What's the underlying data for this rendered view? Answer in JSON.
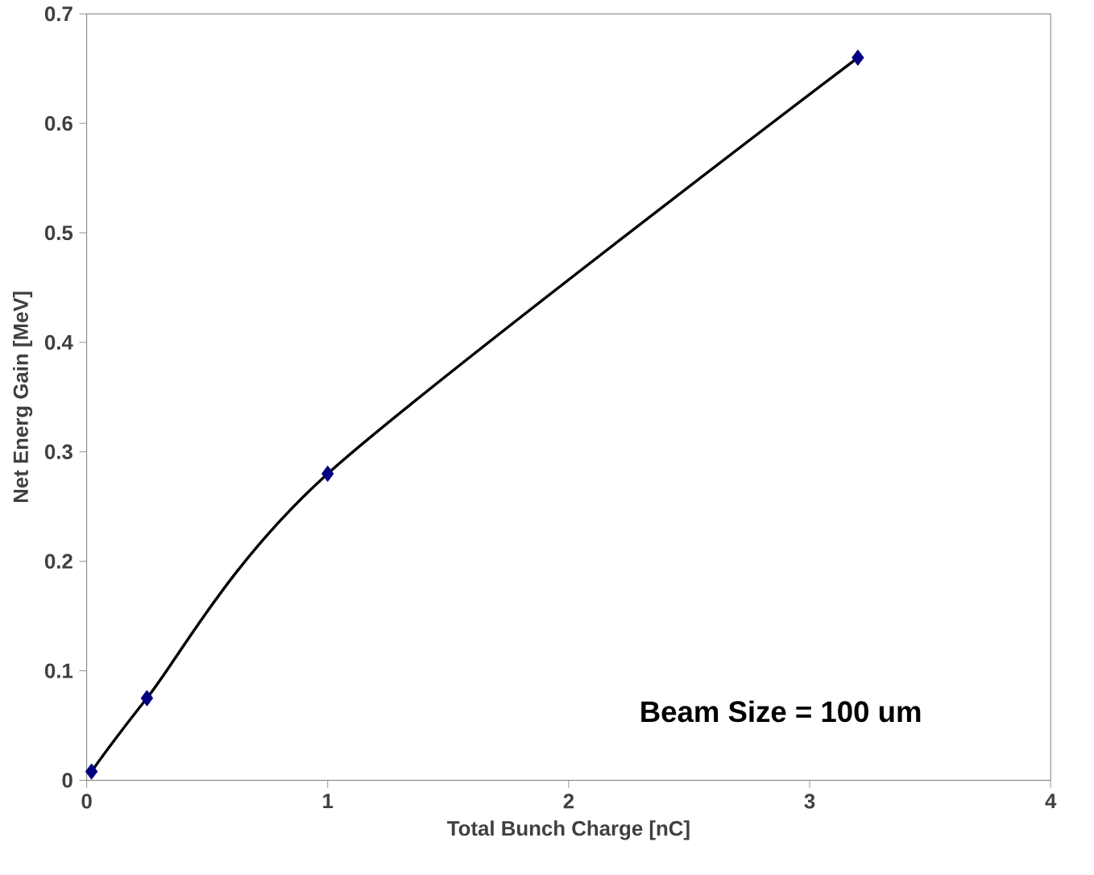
{
  "chart_data": {
    "type": "line",
    "xlabel": "Total Bunch Charge [nC]",
    "ylabel": "Net Energ Gain [MeV]",
    "xlim": [
      0,
      4
    ],
    "ylim": [
      0,
      0.7
    ],
    "xticks": [
      0,
      1,
      2,
      3,
      4
    ],
    "yticks": [
      0,
      0.1,
      0.2,
      0.3,
      0.4,
      0.5,
      0.6,
      0.7
    ],
    "grid": false,
    "annotations": [
      "**Beam Size = 100 um**"
    ],
    "series": [
      {
        "color": "#000000",
        "marker": "none",
        "line_style": "solid",
        "x": [
          0.02,
          0.25,
          1.0,
          3.2
        ],
        "values": [
          0.008,
          0.075,
          0.28,
          0.66
        ]
      },
      {
        "type": "scatter",
        "color": "#000080",
        "marker": "diamond",
        "x": [
          0.02,
          0.25,
          1.0,
          3.2
        ],
        "values": [
          0.008,
          0.075,
          0.28,
          0.66
        ]
      }
    ]
  }
}
